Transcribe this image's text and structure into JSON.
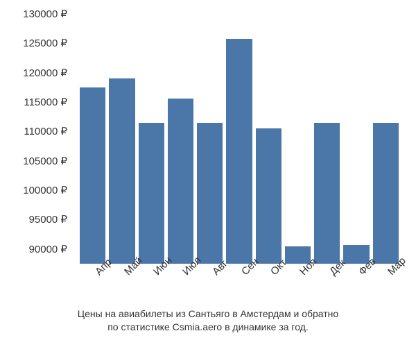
{
  "chart": {
    "type": "bar",
    "categories": [
      "Апр",
      "Май",
      "Июн",
      "Июл",
      "Авг",
      "Сен",
      "Окт",
      "Ноя",
      "Дек",
      "Фев",
      "Мар"
    ],
    "values": [
      117500,
      119000,
      111500,
      115600,
      111500,
      125800,
      110500,
      90500,
      111500,
      90700,
      111500
    ],
    "bar_color": "#4a76a8",
    "ylim": [
      87500,
      130000
    ],
    "yticks": [
      90000,
      95000,
      100000,
      105000,
      110000,
      115000,
      120000,
      125000,
      130000
    ],
    "ytick_labels": [
      "90000 ₽",
      "95000 ₽",
      "100000 ₽",
      "105000 ₽",
      "110000 ₽",
      "115000 ₽",
      "120000 ₽",
      "125000 ₽",
      "130000 ₽"
    ],
    "background_color": "#ffffff",
    "label_fontsize": 15,
    "caption_fontsize": 14,
    "text_color": "#333333",
    "caption_line1": "Цены на авиабилеты из Сантьяго в Амстердам и обратно",
    "caption_line2": "по статистике Csmia.aero в динамике за год."
  }
}
